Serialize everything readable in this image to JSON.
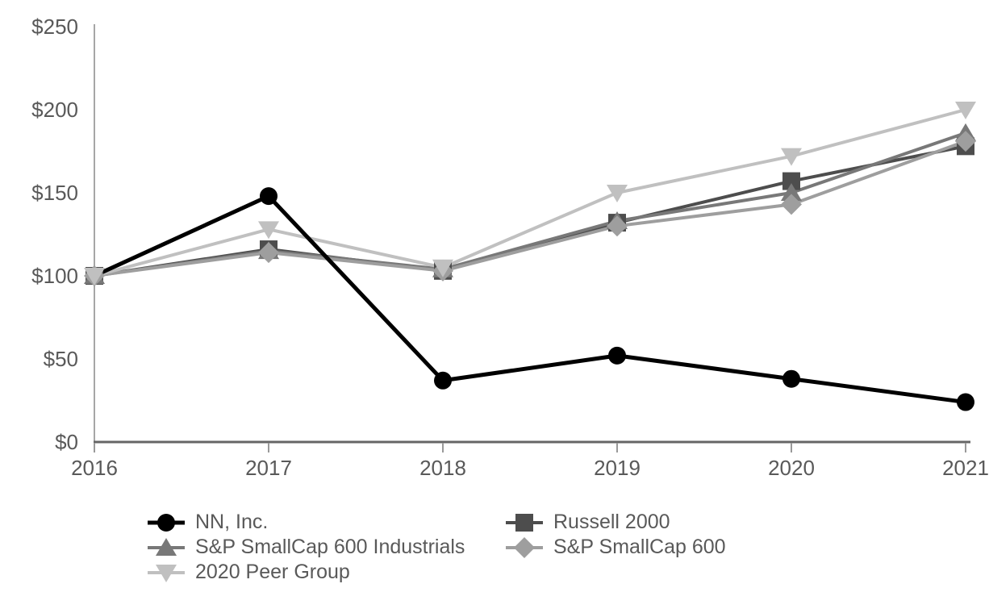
{
  "page": {
    "background": "#ffffff"
  },
  "chart_data": {
    "type": "line",
    "title": "",
    "xlabel": "",
    "ylabel": "",
    "x": [
      2016,
      2017,
      2018,
      2019,
      2020,
      2021
    ],
    "x_tick_labels": [
      "2016",
      "2017",
      "2018",
      "2019",
      "2020",
      "2021"
    ],
    "ylim": [
      0,
      250
    ],
    "y_ticks": [
      0,
      50,
      100,
      150,
      200,
      250
    ],
    "y_tick_labels": [
      "$0",
      "$50",
      "$100",
      "$150",
      "$200",
      "$250"
    ],
    "grid": "off",
    "legend_position": "bottom",
    "colors": {
      "y_axis": "#a6a6a6",
      "x_axis": "#666666",
      "ticks": "#999999",
      "labels": "#595959"
    },
    "series": [
      {
        "name": "NN, Inc.",
        "marker": "circle",
        "color": "#000000",
        "line_width": 5,
        "values": [
          100,
          148,
          37,
          52,
          38,
          24
        ]
      },
      {
        "name": "Russell 2000",
        "marker": "square",
        "color": "#4d4d4d",
        "line_width": 4,
        "values": [
          100,
          116,
          103,
          132,
          157,
          178
        ]
      },
      {
        "name": "S&P SmallCap 600 Industrials",
        "marker": "triangle-up",
        "color": "#787878",
        "line_width": 4,
        "values": [
          100,
          115,
          104,
          133,
          150,
          186
        ]
      },
      {
        "name": "S&P SmallCap 600",
        "marker": "diamond",
        "color": "#9e9e9e",
        "line_width": 4,
        "values": [
          100,
          114,
          103,
          130,
          143,
          181
        ]
      },
      {
        "name": "2020 Peer Group",
        "marker": "triangle-down",
        "color": "#c0c0c0",
        "line_width": 4,
        "values": [
          100,
          128,
          105,
          150,
          172,
          200
        ]
      }
    ],
    "line_draw_order": [
      "Russell 2000",
      "S&P SmallCap 600 Industrials",
      "S&P SmallCap 600",
      "2020 Peer Group",
      "NN, Inc."
    ],
    "marker_draw_order": [
      "NN, Inc.",
      "Russell 2000",
      "S&P SmallCap 600 Industrials",
      "S&P SmallCap 600",
      "2020 Peer Group"
    ]
  },
  "legend": {
    "columns": [
      {
        "items": [
          "NN, Inc.",
          "S&P SmallCap 600 Industrials",
          "2020 Peer Group"
        ]
      },
      {
        "items": [
          "Russell 2000",
          "S&P SmallCap 600"
        ]
      }
    ]
  }
}
